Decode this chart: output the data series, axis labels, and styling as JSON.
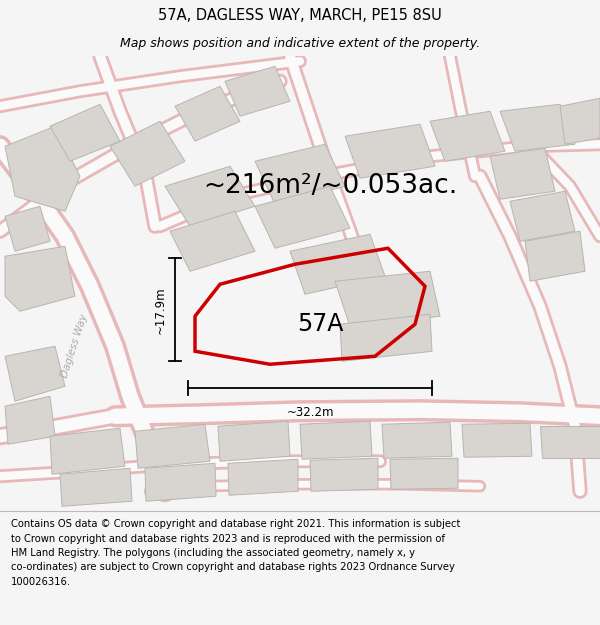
{
  "title": "57A, DAGLESS WAY, MARCH, PE15 8SU",
  "subtitle": "Map shows position and indicative extent of the property.",
  "area_text": "~216m²/~0.053ac.",
  "label_57a": "57A",
  "dim_horiz": "~32.2m",
  "dim_vert": "~17.9m",
  "footer": "Contains OS data © Crown copyright and database right 2021. This information is subject to Crown copyright and database rights 2023 and is reproduced with the permission of HM Land Registry. The polygons (including the associated geometry, namely x, y co-ordinates) are subject to Crown copyright and database rights 2023 Ordnance Survey 100026316.",
  "bg_color": "#f5f5f5",
  "map_bg": "#f9f9f9",
  "road_color_light": "#f2c8c8",
  "building_fill": "#d8d5d0",
  "building_edge": "#b8b5b0",
  "highlight_color": "#cc0000",
  "dagless_way_label": "Dagless Way",
  "title_fontsize": 10.5,
  "subtitle_fontsize": 9,
  "area_fontsize": 19,
  "label_fontsize": 18,
  "dim_fontsize": 9,
  "footer_fontsize": 7.2
}
